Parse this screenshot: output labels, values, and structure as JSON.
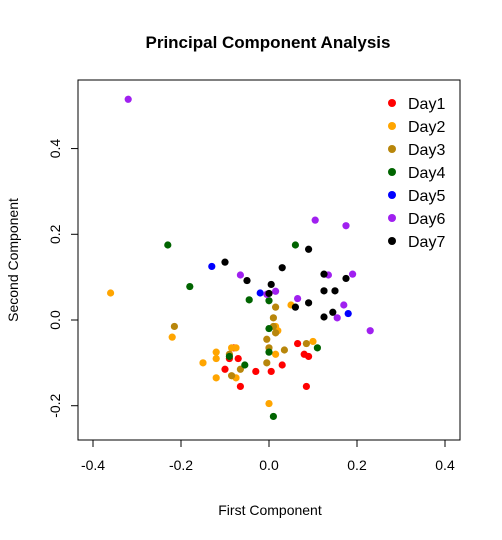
{
  "chart_data": {
    "type": "scatter",
    "title": "Principal Component Analysis",
    "xlabel": "First Component",
    "ylabel": "Second Component",
    "xlim": [
      -0.4,
      0.4
    ],
    "ylim": [
      -0.28,
      0.56
    ],
    "x_ticks": [
      "-0.4",
      "-0.2",
      "0.0",
      "0.2",
      "0.4"
    ],
    "y_ticks": [
      "-0.2",
      "0.0",
      "0.2",
      "0.4"
    ],
    "x_tick_values": [
      -0.4,
      -0.2,
      0.0,
      0.2,
      0.4
    ],
    "y_tick_values": [
      -0.2,
      0.0,
      0.2,
      0.4
    ],
    "grid": false,
    "legend_position": "top-right",
    "series": [
      {
        "name": "Day1",
        "color": "#ff0000",
        "points": [
          [
            -0.08,
            -0.065
          ],
          [
            -0.09,
            -0.09
          ],
          [
            -0.07,
            -0.09
          ],
          [
            -0.1,
            -0.115
          ],
          [
            -0.065,
            -0.155
          ],
          [
            -0.03,
            -0.12
          ],
          [
            0.005,
            -0.12
          ],
          [
            0.03,
            -0.105
          ],
          [
            0.065,
            -0.055
          ],
          [
            0.08,
            -0.08
          ],
          [
            0.09,
            -0.085
          ],
          [
            0.085,
            -0.155
          ]
        ]
      },
      {
        "name": "Day2",
        "color": "#ffa500",
        "points": [
          [
            -0.36,
            0.063
          ],
          [
            -0.22,
            -0.04
          ],
          [
            -0.15,
            -0.1
          ],
          [
            -0.12,
            -0.075
          ],
          [
            -0.12,
            -0.09
          ],
          [
            -0.085,
            -0.065
          ],
          [
            -0.075,
            -0.065
          ],
          [
            -0.12,
            -0.135
          ],
          [
            -0.075,
            -0.135
          ],
          [
            0.0,
            -0.195
          ],
          [
            0.015,
            -0.015
          ],
          [
            0.02,
            -0.025
          ],
          [
            0.015,
            -0.08
          ],
          [
            0.05,
            0.035
          ],
          [
            0.1,
            -0.05
          ]
        ]
      },
      {
        "name": "Day3",
        "color": "#b8860b",
        "points": [
          [
            -0.215,
            -0.015
          ],
          [
            -0.09,
            -0.08
          ],
          [
            -0.085,
            -0.13
          ],
          [
            -0.065,
            -0.115
          ],
          [
            -0.005,
            -0.045
          ],
          [
            0.0,
            -0.065
          ],
          [
            0.01,
            -0.015
          ],
          [
            0.015,
            -0.03
          ],
          [
            0.01,
            0.005
          ],
          [
            0.035,
            -0.07
          ],
          [
            0.085,
            -0.055
          ],
          [
            0.015,
            0.03
          ],
          [
            -0.005,
            -0.1
          ]
        ]
      },
      {
        "name": "Day4",
        "color": "#006400",
        "points": [
          [
            -0.23,
            0.175
          ],
          [
            -0.18,
            0.078
          ],
          [
            -0.045,
            0.047
          ],
          [
            -0.055,
            -0.105
          ],
          [
            -0.09,
            -0.085
          ],
          [
            0.0,
            -0.02
          ],
          [
            0.0,
            -0.075
          ],
          [
            0.01,
            -0.225
          ],
          [
            0.06,
            0.175
          ],
          [
            0.11,
            -0.065
          ],
          [
            0.0,
            0.045
          ]
        ]
      },
      {
        "name": "Day5",
        "color": "#0000ff",
        "points": [
          [
            -0.13,
            0.125
          ],
          [
            -0.02,
            0.063
          ],
          [
            0.18,
            0.015
          ]
        ]
      },
      {
        "name": "Day6",
        "color": "#a020f0",
        "points": [
          [
            -0.32,
            0.515
          ],
          [
            -0.065,
            0.105
          ],
          [
            -0.005,
            0.06
          ],
          [
            0.015,
            0.067
          ],
          [
            0.065,
            0.05
          ],
          [
            0.105,
            0.233
          ],
          [
            0.135,
            0.105
          ],
          [
            0.155,
            0.005
          ],
          [
            0.17,
            0.035
          ],
          [
            0.175,
            0.22
          ],
          [
            0.19,
            0.107
          ],
          [
            0.23,
            -0.025
          ]
        ]
      },
      {
        "name": "Day7",
        "color": "#000000",
        "points": [
          [
            -0.1,
            0.135
          ],
          [
            -0.05,
            0.092
          ],
          [
            0.0,
            0.062
          ],
          [
            0.005,
            0.083
          ],
          [
            0.03,
            0.122
          ],
          [
            0.06,
            0.03
          ],
          [
            0.09,
            0.04
          ],
          [
            0.09,
            0.165
          ],
          [
            0.125,
            0.107
          ],
          [
            0.125,
            0.068
          ],
          [
            0.125,
            0.007
          ],
          [
            0.145,
            0.018
          ],
          [
            0.15,
            0.068
          ],
          [
            0.175,
            0.097
          ]
        ]
      }
    ]
  }
}
